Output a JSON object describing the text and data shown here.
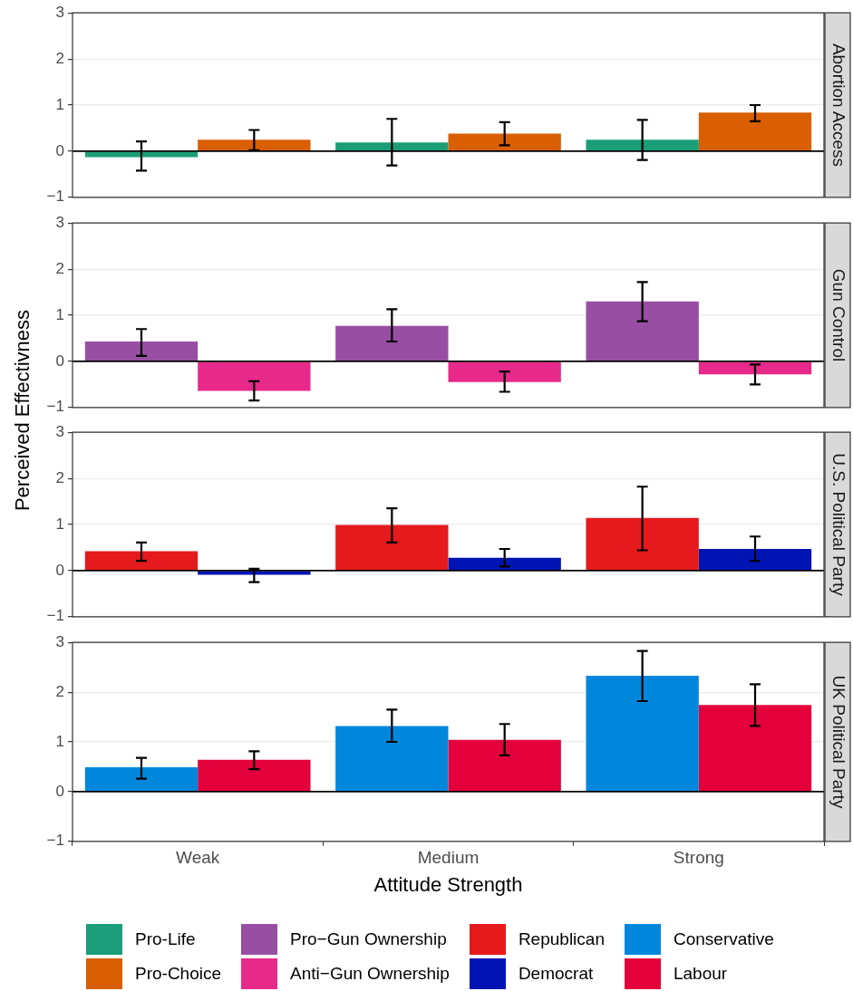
{
  "chart_data": [
    {
      "type": "bar",
      "title": "Abortion Access",
      "ylabel": "Perceived Effectivness",
      "categories": [
        null,
        null,
        null
      ],
      "ylim": [
        -1,
        3
      ],
      "yticks": [
        -1,
        0,
        1,
        2,
        3
      ],
      "grid": "y",
      "tick_labels": "y",
      "legend": "bottom",
      "ref_lines": [
        {
          "axis": "y",
          "value": 0,
          "color": "#000000"
        }
      ],
      "series": [
        {
          "name": "Pro-Life",
          "color": "#1b9e77",
          "values": [
            -0.13,
            0.19,
            0.25
          ],
          "errors": [
            [
              -0.42,
              0.21
            ],
            [
              -0.31,
              0.7
            ],
            [
              -0.19,
              0.68
            ]
          ]
        },
        {
          "name": "Pro-Choice",
          "color": "#d95f02",
          "values": [
            0.25,
            0.38,
            0.84
          ],
          "errors": [
            [
              0.02,
              0.46
            ],
            [
              0.13,
              0.63
            ],
            [
              0.65,
              1.0
            ]
          ]
        }
      ]
    },
    {
      "type": "bar",
      "title": "Gun Control",
      "categories": [
        null,
        null,
        null
      ],
      "ylim": [
        -1,
        3
      ],
      "yticks": [
        -1,
        0,
        1,
        2,
        3
      ],
      "grid": "y",
      "tick_labels": "y",
      "legend": "bottom",
      "ref_lines": [
        {
          "axis": "y",
          "value": 0,
          "color": "#000000"
        }
      ],
      "series": [
        {
          "name": "Pro−Gun Ownership",
          "color": "#984ea3",
          "values": [
            0.43,
            0.77,
            1.3
          ],
          "errors": [
            [
              0.12,
              0.7
            ],
            [
              0.43,
              1.13
            ],
            [
              0.87,
              1.72
            ]
          ]
        },
        {
          "name": "Anti−Gun Ownership",
          "color": "#e7298a",
          "values": [
            -0.64,
            -0.45,
            -0.28
          ],
          "errors": [
            [
              -0.85,
              -0.43
            ],
            [
              -0.66,
              -0.22
            ],
            [
              -0.5,
              -0.07
            ]
          ]
        }
      ]
    },
    {
      "type": "bar",
      "title": "U.S. Political Party",
      "categories": [
        null,
        null,
        null
      ],
      "ylim": [
        -1,
        3
      ],
      "yticks": [
        -1,
        0,
        1,
        2,
        3
      ],
      "grid": "y",
      "tick_labels": "y",
      "legend": "bottom",
      "ref_lines": [
        {
          "axis": "y",
          "value": 0,
          "color": "#000000"
        }
      ],
      "series": [
        {
          "name": "Republican",
          "color": "#e41a1c",
          "values": [
            0.42,
            0.99,
            1.14
          ],
          "errors": [
            [
              0.21,
              0.61
            ],
            [
              0.61,
              1.35
            ],
            [
              0.44,
              1.82
            ]
          ]
        },
        {
          "name": "Democrat",
          "color": "#0014b4",
          "values": [
            -0.09,
            0.28,
            0.47
          ],
          "errors": [
            [
              -0.25,
              0.04
            ],
            [
              0.09,
              0.47
            ],
            [
              0.21,
              0.74
            ]
          ]
        }
      ]
    },
    {
      "type": "bar",
      "title": "UK Political Party",
      "xlabel": "Attitude Strength",
      "categories": [
        "Weak",
        "Medium",
        "Strong"
      ],
      "ylim": [
        -1,
        3
      ],
      "yticks": [
        -1,
        0,
        1,
        2,
        3
      ],
      "grid": "y",
      "legend": "bottom",
      "ref_lines": [
        {
          "axis": "y",
          "value": 0,
          "color": "#000000"
        }
      ],
      "series": [
        {
          "name": "Conservative",
          "color": "#0087dc",
          "values": [
            0.49,
            1.32,
            2.33
          ],
          "errors": [
            [
              0.26,
              0.68
            ],
            [
              1.0,
              1.65
            ],
            [
              1.82,
              2.83
            ]
          ]
        },
        {
          "name": "Labour",
          "color": "#e4003b",
          "values": [
            0.64,
            1.04,
            1.74
          ],
          "errors": [
            [
              0.45,
              0.81
            ],
            [
              0.73,
              1.36
            ],
            [
              1.32,
              2.16
            ]
          ]
        }
      ]
    }
  ]
}
